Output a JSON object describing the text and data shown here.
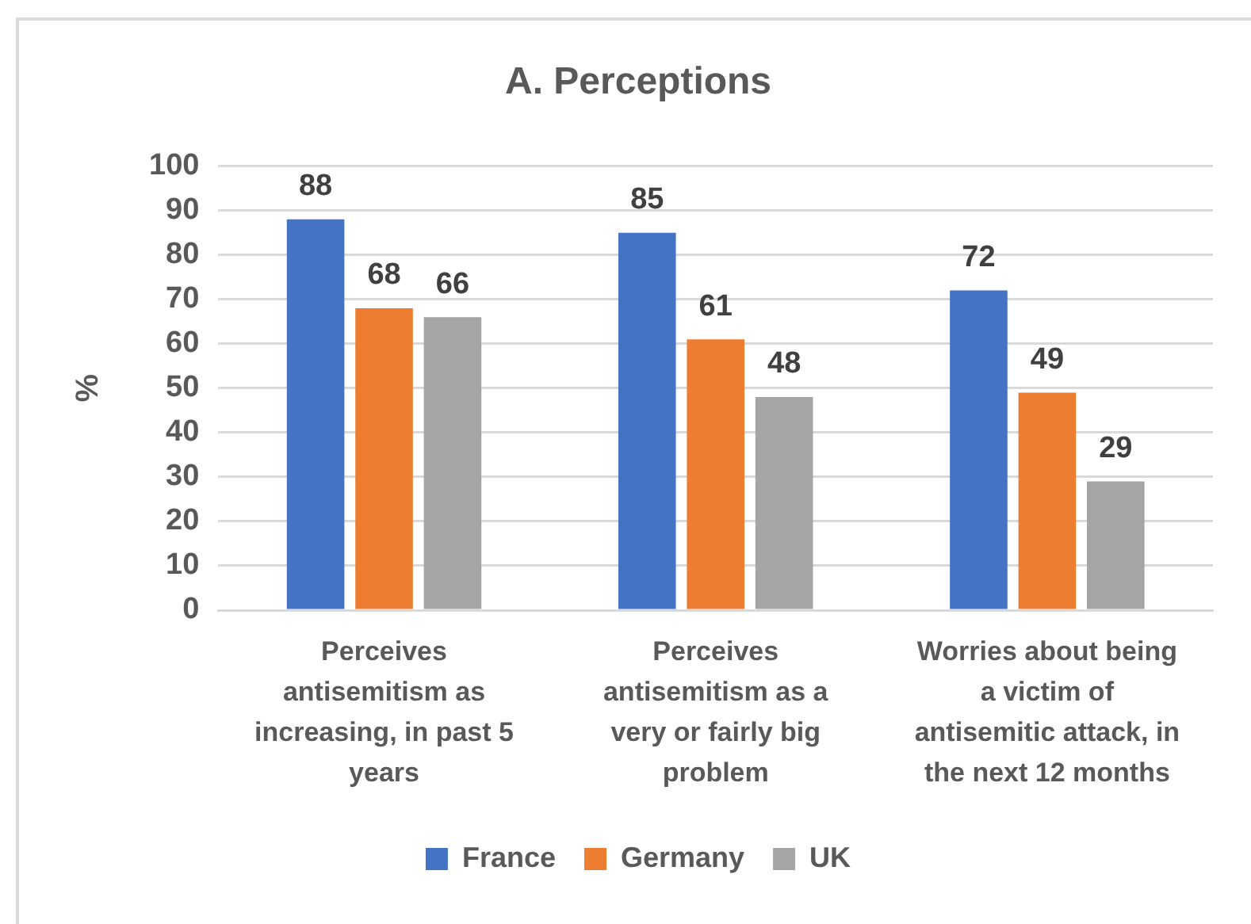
{
  "chart_data": {
    "type": "bar",
    "title": "A. Perceptions",
    "ylabel": "%",
    "categories": [
      "Perceives antisemitism as increasing, in past 5 years",
      "Perceives antisemitism as a very or fairly big problem",
      "Worries about being a victim of antisemitic attack, in the next 12 months"
    ],
    "series": [
      {
        "name": "France",
        "color": "#4472c4",
        "values": [
          88,
          85,
          72
        ]
      },
      {
        "name": "Germany",
        "color": "#ed7d31",
        "values": [
          68,
          61,
          49
        ]
      },
      {
        "name": "UK",
        "color": "#a5a5a5",
        "values": [
          66,
          48,
          29
        ]
      }
    ],
    "ylim": [
      0,
      100
    ],
    "yticks": [
      0,
      10,
      20,
      30,
      40,
      50,
      60,
      70,
      80,
      90,
      100
    ],
    "grid": "y",
    "legend": "bottom",
    "data_labels": true
  }
}
